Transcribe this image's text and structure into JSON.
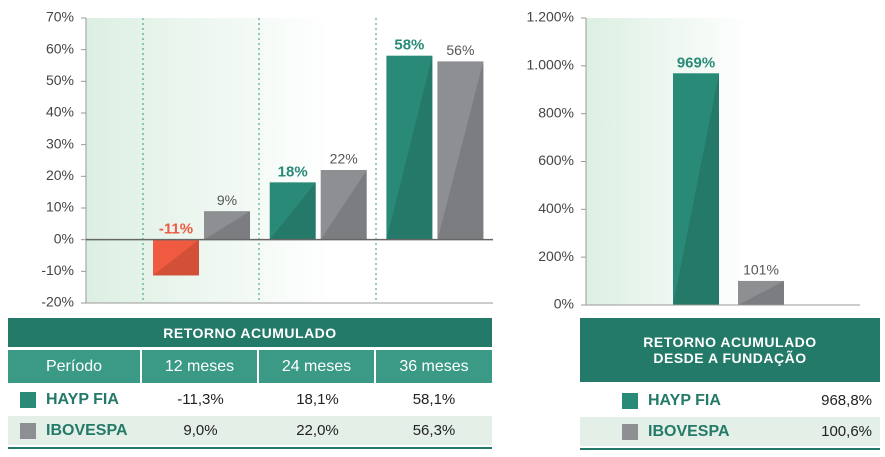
{
  "chart_data": [
    {
      "type": "bar",
      "categories": [
        null,
        null,
        null
      ],
      "series": [
        {
          "name": "HAYP FIA",
          "color": "#2a8a78",
          "negative_color": "#ef5a40",
          "values": [
            -11.3,
            18.1,
            58.1
          ],
          "value_labels": [
            "-11%",
            "18%",
            "58%"
          ]
        },
        {
          "name": "IBOVESPA",
          "color": "#8e8f93",
          "values": [
            9.0,
            22.0,
            56.3
          ],
          "value_labels": [
            "9%",
            "22%",
            "56%"
          ]
        }
      ],
      "ylim": [
        -20,
        70
      ],
      "yticks": [
        {
          "value": -20,
          "label": "-20%"
        },
        {
          "value": -10,
          "label": "-10%"
        },
        {
          "value": 0,
          "label": "0%"
        },
        {
          "value": 10,
          "label": "10%"
        },
        {
          "value": 20,
          "label": "20%"
        },
        {
          "value": 30,
          "label": "30%"
        },
        {
          "value": 40,
          "label": "40%"
        },
        {
          "value": 50,
          "label": "50%"
        },
        {
          "value": 60,
          "label": "60%"
        },
        {
          "value": 70,
          "label": "70%"
        }
      ],
      "grid": false
    },
    {
      "type": "bar",
      "categories": [
        null
      ],
      "series": [
        {
          "name": "HAYP FIA",
          "color": "#2a8a78",
          "values": [
            968.8
          ],
          "value_labels": [
            "969%"
          ]
        },
        {
          "name": "IBOVESPA",
          "color": "#8e8f93",
          "values": [
            100.6
          ],
          "value_labels": [
            "101%"
          ]
        }
      ],
      "ylim": [
        0,
        1200
      ],
      "yticks": [
        {
          "value": 0,
          "label": "0%"
        },
        {
          "value": 200,
          "label": "200%"
        },
        {
          "value": 400,
          "label": "400%"
        },
        {
          "value": 600,
          "label": "600%"
        },
        {
          "value": 800,
          "label": "800%"
        },
        {
          "value": 1000,
          "label": "1.000%"
        },
        {
          "value": 1200,
          "label": "1.200%"
        }
      ],
      "grid": false
    }
  ],
  "table_left": {
    "title": "RETORNO ACUMULADO",
    "headers": [
      "Período",
      "12 meses",
      "24 meses",
      "36 meses"
    ],
    "rows": [
      [
        "-11,3%",
        "18,1%",
        "58,1%"
      ],
      [
        "9,0%",
        "22,0%",
        "56,3%"
      ]
    ]
  },
  "table_right": {
    "title": [
      "RETORNO ACUMULADO",
      "DESDE A FUNDAÇÃO"
    ],
    "rows": [
      [
        "968,8%"
      ],
      [
        "100,6%"
      ]
    ]
  }
}
